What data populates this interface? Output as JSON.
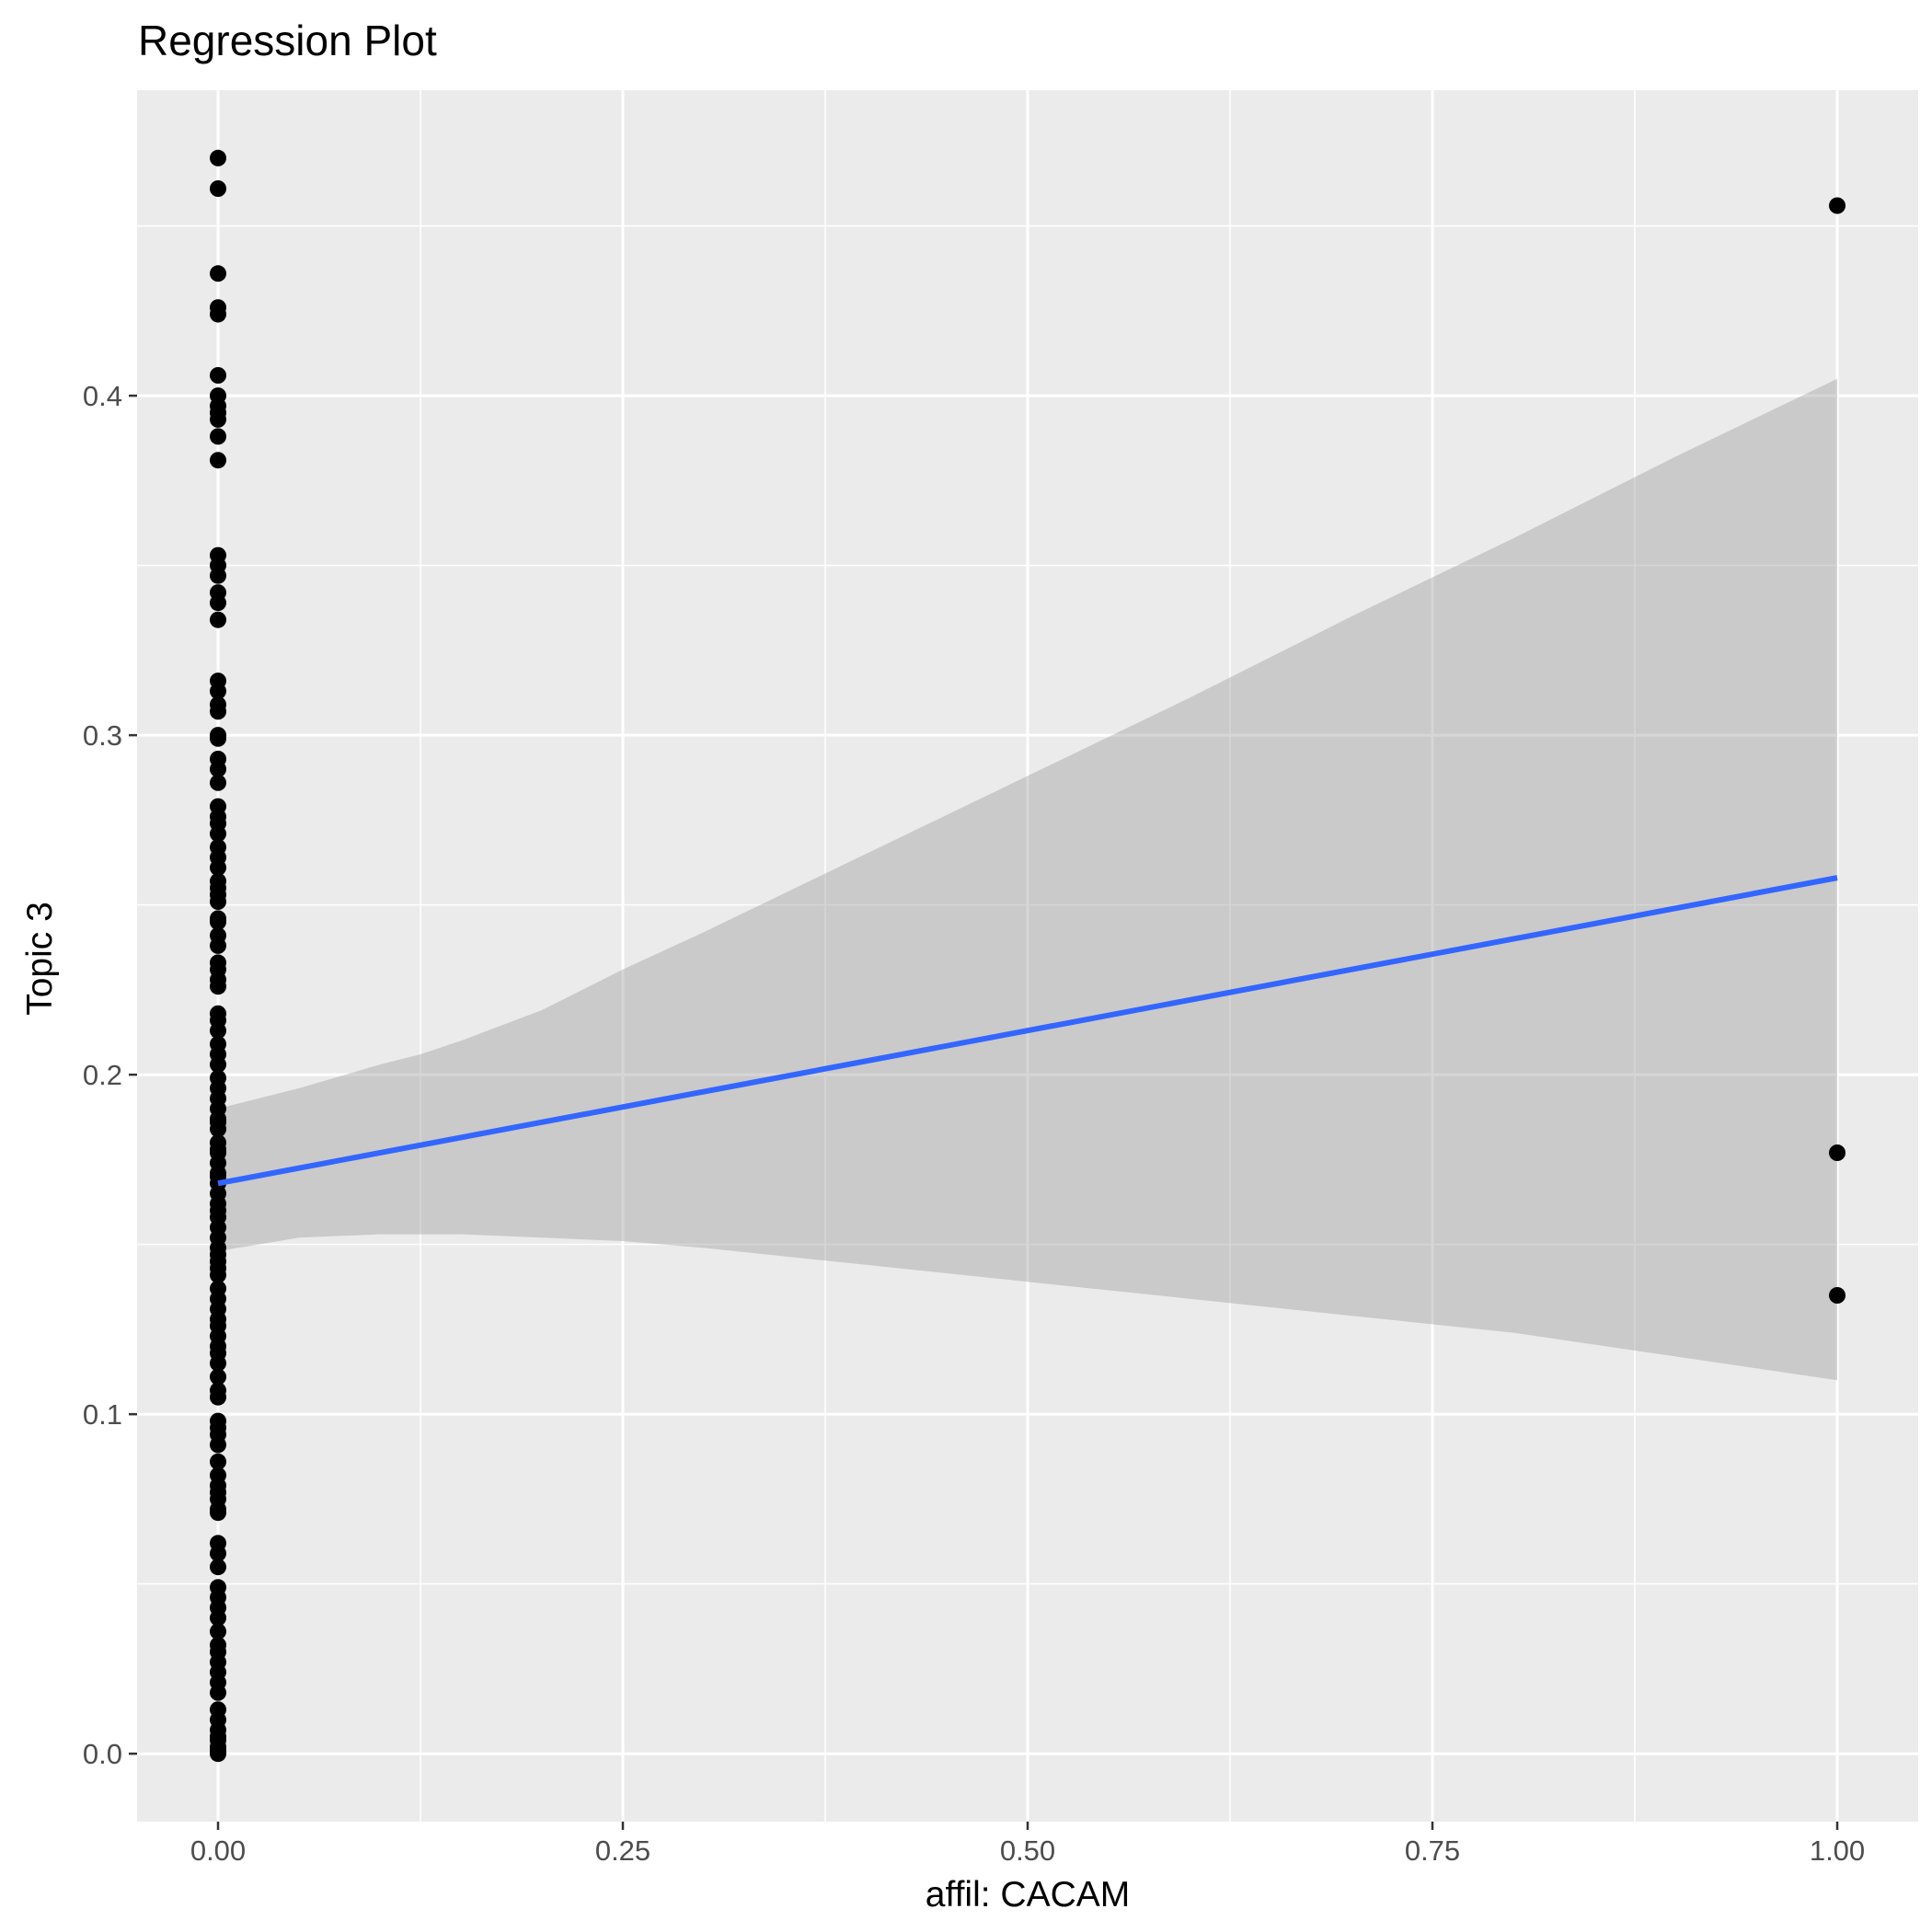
{
  "chart_data": {
    "type": "scatter",
    "title": "Regression Plot",
    "xlabel": "affil: CACAM",
    "ylabel": "Topic 3",
    "xlim": [
      -0.05,
      1.05
    ],
    "ylim": [
      -0.02,
      0.49
    ],
    "x_ticks": [
      0.0,
      0.25,
      0.5,
      0.75,
      1.0
    ],
    "x_tick_labels": [
      "0.00",
      "0.25",
      "0.50",
      "0.75",
      "1.00"
    ],
    "y_ticks": [
      0.0,
      0.1,
      0.2,
      0.3,
      0.4
    ],
    "y_tick_labels": [
      "0.0",
      "0.1",
      "0.2",
      "0.3",
      "0.4"
    ],
    "grid": true,
    "legend": "none",
    "colors": {
      "panel": "#ebebeb",
      "grid": "#ffffff",
      "points": "#000000",
      "line": "#3366ff",
      "ribbon": "#999999"
    },
    "points": {
      "x": [
        0,
        0,
        0,
        0,
        0,
        0,
        0,
        0,
        0,
        0,
        0,
        0,
        0,
        0,
        0,
        0,
        0,
        0,
        0,
        0,
        0,
        0,
        0,
        0,
        0,
        0,
        0,
        0,
        0,
        0,
        0,
        0,
        0,
        0,
        0,
        0,
        0,
        0,
        0,
        0,
        0,
        0,
        0,
        0,
        0,
        0,
        0,
        0,
        0,
        0,
        0,
        0,
        0,
        0,
        0,
        0,
        0,
        0,
        0,
        0,
        0,
        0,
        0,
        0,
        0,
        0,
        0,
        0,
        0,
        0,
        0,
        0,
        0,
        0,
        0,
        0,
        0,
        0,
        0,
        0,
        0,
        0,
        0,
        0,
        0,
        0,
        0,
        0,
        0,
        0,
        0,
        0,
        0,
        0,
        0,
        0,
        0,
        0,
        0,
        0,
        0,
        0,
        0,
        0,
        0,
        0,
        0,
        0,
        0,
        0,
        0,
        0,
        0,
        0,
        0,
        0,
        0,
        0,
        0,
        0,
        0,
        0,
        1,
        1,
        1
      ],
      "y": [
        0.47,
        0.461,
        0.436,
        0.426,
        0.424,
        0.406,
        0.4,
        0.397,
        0.395,
        0.393,
        0.388,
        0.381,
        0.353,
        0.35,
        0.347,
        0.342,
        0.339,
        0.334,
        0.316,
        0.313,
        0.309,
        0.307,
        0.3,
        0.299,
        0.293,
        0.29,
        0.286,
        0.276,
        0.274,
        0.271,
        0.267,
        0.264,
        0.261,
        0.255,
        0.253,
        0.251,
        0.246,
        0.245,
        0.241,
        0.238,
        0.233,
        0.231,
        0.228,
        0.226,
        0.218,
        0.216,
        0.213,
        0.209,
        0.206,
        0.203,
        0.199,
        0.196,
        0.193,
        0.19,
        0.187,
        0.184,
        0.18,
        0.177,
        0.174,
        0.171,
        0.168,
        0.165,
        0.162,
        0.16,
        0.158,
        0.155,
        0.152,
        0.149,
        0.147,
        0.145,
        0.134,
        0.131,
        0.128,
        0.126,
        0.123,
        0.12,
        0.118,
        0.115,
        0.111,
        0.107,
        0.098,
        0.096,
        0.094,
        0.079,
        0.077,
        0.075,
        0.072,
        0.062,
        0.059,
        0.049,
        0.046,
        0.043,
        0.032,
        0.03,
        0.021,
        0.007,
        0.004,
        0.001,
        0.0,
        0.17,
        0.143,
        0.105,
        0.082,
        0.071,
        0.055,
        0.04,
        0.036,
        0.027,
        0.024,
        0.018,
        0.013,
        0.01,
        0.002,
        0.005,
        0.086,
        0.091,
        0.137,
        0.141,
        0.178,
        0.186,
        0.257,
        0.279,
        0.456,
        0.177,
        0.135
      ]
    },
    "fit_line": {
      "x": [
        0,
        1
      ],
      "y": [
        0.168,
        0.258
      ]
    },
    "confidence_band": {
      "x": [
        0,
        0.05,
        0.1,
        0.125,
        0.15,
        0.2,
        0.25,
        0.3,
        0.4,
        0.5,
        0.6,
        0.7,
        0.8,
        0.9,
        1.0
      ],
      "upper": [
        0.19,
        0.196,
        0.203,
        0.206,
        0.21,
        0.219,
        0.231,
        0.242,
        0.265,
        0.288,
        0.311,
        0.335,
        0.358,
        0.382,
        0.405
      ],
      "lower": [
        0.148,
        0.152,
        0.153,
        0.153,
        0.153,
        0.152,
        0.151,
        0.149,
        0.144,
        0.139,
        0.134,
        0.129,
        0.124,
        0.117,
        0.11
      ]
    }
  }
}
